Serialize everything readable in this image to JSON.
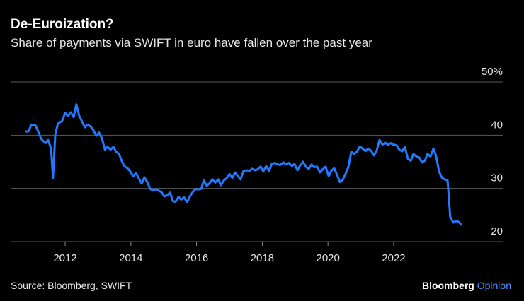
{
  "chart_data": {
    "type": "line",
    "title": "De-Euroization?",
    "subtitle": "Share of payments via SWIFT in euro have fallen over the past year",
    "source": "Source: Bloomberg, SWIFT",
    "brand": "Bloomberg",
    "brand_suffix": "Opinion",
    "color": "#1f7aff",
    "grid": true,
    "xlim": [
      2010.34,
      2025.32
    ],
    "xticks": [
      2012,
      2014,
      2016,
      2018,
      2020,
      2022
    ],
    "ylim": [
      20,
      50
    ],
    "yticks": [
      20,
      30,
      40,
      {
        "value": 50,
        "label": "50%"
      }
    ],
    "x": [
      2010.77,
      2010.88,
      2010.97,
      2011.09,
      2011.18,
      2011.27,
      2011.4,
      2011.48,
      2011.57,
      2011.63,
      2011.7,
      2011.78,
      2011.91,
      2012.0,
      2012.09,
      2012.17,
      2012.26,
      2012.34,
      2012.43,
      2012.52,
      2012.6,
      2012.69,
      2012.78,
      2012.86,
      2012.95,
      2013.03,
      2013.12,
      2013.21,
      2013.29,
      2013.38,
      2013.47,
      2013.55,
      2013.64,
      2013.72,
      2013.81,
      2013.9,
      2013.98,
      2014.07,
      2014.16,
      2014.24,
      2014.33,
      2014.41,
      2014.5,
      2014.59,
      2014.67,
      2014.76,
      2014.84,
      2014.93,
      2015.02,
      2015.1,
      2015.19,
      2015.28,
      2015.36,
      2015.45,
      2015.53,
      2015.62,
      2015.71,
      2015.79,
      2015.88,
      2015.97,
      2016.05,
      2016.14,
      2016.22,
      2016.31,
      2016.4,
      2016.48,
      2016.57,
      2016.66,
      2016.74,
      2016.83,
      2016.91,
      2017.0,
      2017.09,
      2017.17,
      2017.26,
      2017.34,
      2017.43,
      2017.52,
      2017.6,
      2017.69,
      2017.78,
      2017.86,
      2017.95,
      2018.03,
      2018.12,
      2018.21,
      2018.29,
      2018.38,
      2018.47,
      2018.55,
      2018.64,
      2018.72,
      2018.81,
      2018.9,
      2018.98,
      2019.07,
      2019.16,
      2019.24,
      2019.33,
      2019.41,
      2019.5,
      2019.59,
      2019.67,
      2019.76,
      2019.84,
      2019.93,
      2020.02,
      2020.1,
      2020.19,
      2020.28,
      2020.36,
      2020.45,
      2020.53,
      2020.62,
      2020.71,
      2020.79,
      2020.88,
      2020.97,
      2021.05,
      2021.14,
      2021.22,
      2021.31,
      2021.4,
      2021.48,
      2021.57,
      2021.66,
      2021.74,
      2021.83,
      2021.91,
      2022.0,
      2022.09,
      2022.17,
      2022.26,
      2022.34,
      2022.43,
      2022.52,
      2022.6,
      2022.69,
      2022.78,
      2022.86,
      2022.95,
      2023.03,
      2023.12,
      2023.21,
      2023.29,
      2023.38,
      2023.47,
      2023.55,
      2023.64,
      2023.72,
      2023.81,
      2023.9,
      2023.98,
      2024.07
    ],
    "values": [
      40.7,
      40.7,
      41.9,
      41.9,
      40.7,
      39.3,
      38.5,
      39.1,
      37.5,
      32.0,
      40.2,
      42.2,
      42.7,
      44.2,
      43.6,
      44.3,
      43.4,
      45.8,
      43.6,
      42.5,
      41.5,
      42.0,
      41.6,
      40.9,
      39.9,
      40.5,
      39.4,
      37.3,
      37.8,
      37.3,
      37.8,
      36.9,
      36.5,
      35.2,
      34.1,
      33.8,
      33.2,
      32.3,
      32.9,
      31.9,
      30.9,
      32.1,
      31.2,
      29.9,
      29.6,
      29.9,
      29.6,
      29.3,
      28.5,
      28.7,
      29.2,
      27.6,
      27.5,
      28.4,
      27.9,
      28.3,
      27.4,
      28.4,
      29.3,
      29.9,
      29.8,
      29.9,
      31.5,
      30.5,
      31.0,
      31.7,
      31.1,
      31.7,
      30.6,
      31.5,
      31.9,
      32.7,
      32.0,
      33.0,
      32.3,
      31.7,
      33.3,
      33.4,
      33.3,
      33.7,
      33.4,
      33.6,
      34.1,
      33.2,
      34.2,
      33.3,
      34.6,
      34.8,
      34.5,
      34.4,
      34.9,
      34.5,
      34.8,
      34.2,
      34.6,
      33.4,
      34.4,
      35.0,
      34.1,
      33.6,
      34.5,
      34.0,
      34.1,
      33.0,
      33.6,
      34.1,
      32.3,
      33.3,
      33.8,
      32.5,
      31.2,
      31.6,
      32.7,
      34.0,
      36.9,
      36.5,
      36.9,
      37.9,
      37.5,
      37.0,
      37.5,
      37.1,
      36.2,
      37.1,
      39.1,
      38.2,
      38.6,
      38.2,
      38.5,
      38.2,
      38.1,
      37.3,
      37.0,
      37.8,
      35.6,
      35.2,
      36.5,
      36.0,
      35.8,
      34.9,
      35.2,
      36.5,
      36.0,
      37.5,
      36.1,
      33.2,
      32.0,
      31.7,
      31.5,
      24.7,
      23.6,
      23.9,
      23.7,
      23.1
    ]
  }
}
